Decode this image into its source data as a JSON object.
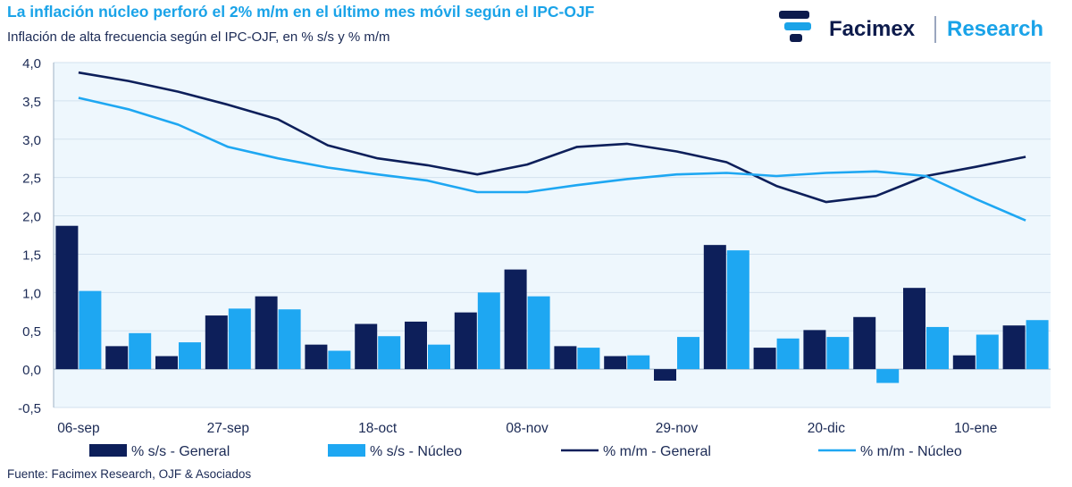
{
  "header": {
    "title": "La inflación núcleo perforó el 2% m/m en el último mes móvil según el IPC-OJF",
    "subtitle": "Inflación de alta frecuencia según el IPC-OJF, en % s/s y % m/m"
  },
  "logo": {
    "brand": "Facimex",
    "unit": "Research",
    "icon": "facimex-logo-icon"
  },
  "footer": {
    "source": "Fuente: Facimex Research, OJF & Asociados"
  },
  "colors": {
    "dark": "#0d1f5a",
    "light": "#1ea7f2",
    "plot_bg": "#eef7fd",
    "grid": "#d3e2ee"
  },
  "chart_data": {
    "type": "bar+line",
    "ylim": [
      -0.5,
      4.0
    ],
    "yticks": [
      "-0,5",
      "0,0",
      "0,5",
      "1,0",
      "1,5",
      "2,0",
      "2,5",
      "3,0",
      "3,5",
      "4,0"
    ],
    "ytick_values": [
      -0.5,
      0,
      0.5,
      1.0,
      1.5,
      2.0,
      2.5,
      3.0,
      3.5,
      4.0
    ],
    "x_tick_labels": [
      {
        "label": "06-sep",
        "index": 0
      },
      {
        "label": "27-sep",
        "index": 3
      },
      {
        "label": "18-oct",
        "index": 6
      },
      {
        "label": "08-nov",
        "index": 9
      },
      {
        "label": "29-nov",
        "index": 12
      },
      {
        "label": "20-dic",
        "index": 15
      },
      {
        "label": "10-ene",
        "index": 18
      }
    ],
    "series": [
      {
        "name": "% s/s - General",
        "type": "bar",
        "color": "#0d1f5a",
        "values": [
          1.87,
          0.3,
          0.17,
          0.7,
          0.95,
          0.32,
          0.59,
          0.62,
          0.74,
          1.3,
          0.3,
          0.17,
          -0.15,
          1.62,
          0.28,
          0.51,
          0.68,
          1.06,
          0.18,
          0.57
        ]
      },
      {
        "name": "% s/s - Núcleo",
        "type": "bar",
        "color": "#1ea7f2",
        "values": [
          1.02,
          0.47,
          0.35,
          0.79,
          0.78,
          0.24,
          0.43,
          0.32,
          1.0,
          0.95,
          0.28,
          0.18,
          0.42,
          1.55,
          0.4,
          0.42,
          -0.18,
          0.55,
          0.45,
          0.64
        ]
      },
      {
        "name": "% m/m - General",
        "type": "line",
        "color": "#0d1f5a",
        "values": [
          3.87,
          3.76,
          3.62,
          3.45,
          3.26,
          2.92,
          2.75,
          2.66,
          2.54,
          2.67,
          2.9,
          2.94,
          2.84,
          2.7,
          2.39,
          2.18,
          2.26,
          2.52,
          2.64,
          2.77
        ]
      },
      {
        "name": "% m/m - Núcleo",
        "type": "line",
        "color": "#1ea7f2",
        "values": [
          3.54,
          3.39,
          3.19,
          2.9,
          2.75,
          2.63,
          2.54,
          2.46,
          2.31,
          2.31,
          2.4,
          2.48,
          2.54,
          2.56,
          2.52,
          2.56,
          2.58,
          2.52,
          2.22,
          1.94
        ]
      }
    ]
  }
}
